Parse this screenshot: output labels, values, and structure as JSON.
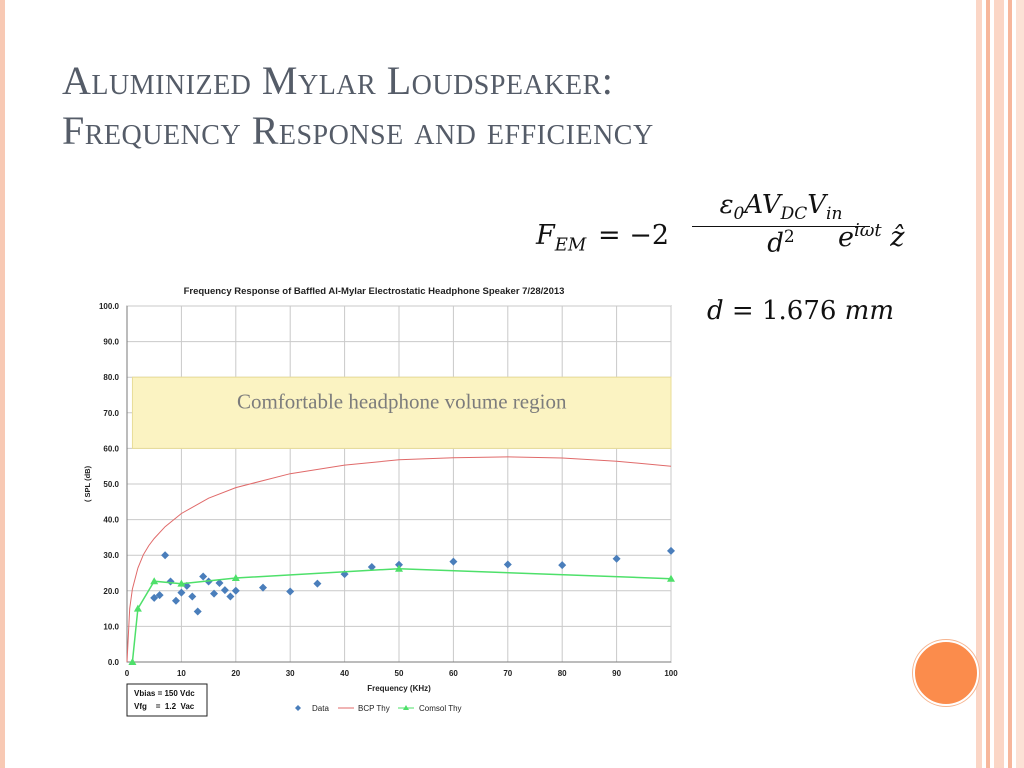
{
  "slide": {
    "title_line1": "Aluminized Mylar Loudspeaker:",
    "title_line2": "Frequency Response and efficiency",
    "formula": {
      "lhs_symbol": "F",
      "lhs_sub": "EM",
      "equals_coef": "= −2",
      "numerator_a": "ε",
      "numerator_a_sub": "0",
      "numerator_b": "AV",
      "numerator_b_sub": "DC",
      "numerator_c": "V",
      "numerator_c_sub": "in",
      "denominator": "d",
      "denominator_sup": "2",
      "exp_base": "e",
      "exp_power": "iωt",
      "unit_vector": "ẑ"
    },
    "distance": {
      "symbol": "d",
      "equals_value": "= 1.676",
      "unit": "mm"
    }
  },
  "chart_data": {
    "type": "scatter",
    "title": "Frequency Response of Baffled Al-Mylar Electrostatic Headphone Speaker  7/28/2013",
    "xlabel": "Frequency (KHz)",
    "ylabel": "( SPL (dB)",
    "xlim": [
      0,
      100
    ],
    "ylim": [
      0,
      100
    ],
    "x_ticks": [
      0,
      10,
      20,
      30,
      40,
      50,
      60,
      70,
      80,
      90,
      100
    ],
    "y_ticks": [
      0,
      10,
      20,
      30,
      40,
      50,
      60,
      70,
      80,
      90,
      100
    ],
    "y_tick_labels": [
      "0.0",
      "10.0",
      "20.0",
      "30.0",
      "40.0",
      "50.0",
      "60.0",
      "70.0",
      "80.0",
      "90.0",
      "100.0"
    ],
    "grid": true,
    "legend_position": "bottom",
    "highlight_region": {
      "y_range": [
        60,
        80
      ],
      "x_range": [
        1,
        100
      ],
      "label": "Comfortable headphone volume region",
      "color": "#fbf3c2"
    },
    "annotation": {
      "line1": "Vbias = 150 Vdc",
      "line2": "Vfg    =  1.2  Vac"
    },
    "series": [
      {
        "name": "Data",
        "kind": "markers",
        "marker": "diamond",
        "color": "#4a7ebb",
        "x": [
          5,
          6,
          7,
          8,
          9,
          10,
          11,
          12,
          13,
          14,
          15,
          16,
          17,
          18,
          19,
          20,
          25,
          30,
          35,
          40,
          45,
          50,
          60,
          70,
          80,
          90,
          100
        ],
        "y": [
          18.0,
          18.8,
          30.0,
          22.6,
          17.2,
          19.5,
          21.4,
          18.4,
          14.2,
          24.0,
          22.6,
          19.2,
          22.2,
          20.2,
          18.4,
          20.0,
          20.9,
          19.8,
          22.0,
          24.7,
          26.7,
          27.3,
          28.2,
          27.4,
          27.2,
          29.0,
          31.2
        ]
      },
      {
        "name": "BCP Thy",
        "kind": "line",
        "color": "#e06a6a",
        "x": [
          0,
          0.5,
          1,
          2,
          3,
          4,
          5,
          7,
          10,
          15,
          20,
          30,
          40,
          50,
          60,
          70,
          80,
          90,
          100
        ],
        "y": [
          0,
          15.0,
          20.5,
          26.4,
          30.1,
          32.7,
          34.7,
          38.0,
          41.7,
          46.0,
          49.0,
          52.9,
          55.3,
          56.8,
          57.4,
          57.6,
          57.3,
          56.4,
          55.0
        ]
      },
      {
        "name": "Comsol Thy",
        "kind": "line",
        "marker": "triangle",
        "color": "#4ee06a",
        "x": [
          1,
          2,
          5,
          10,
          20,
          50,
          100
        ],
        "y": [
          0,
          15.0,
          22.7,
          22.0,
          23.6,
          26.2,
          23.4
        ]
      }
    ]
  },
  "colors": {
    "title": "#555c68",
    "accent_orange": "#fb8c4c",
    "border_peach": "#f8c9b4",
    "highlight": "#fbf3c2"
  }
}
